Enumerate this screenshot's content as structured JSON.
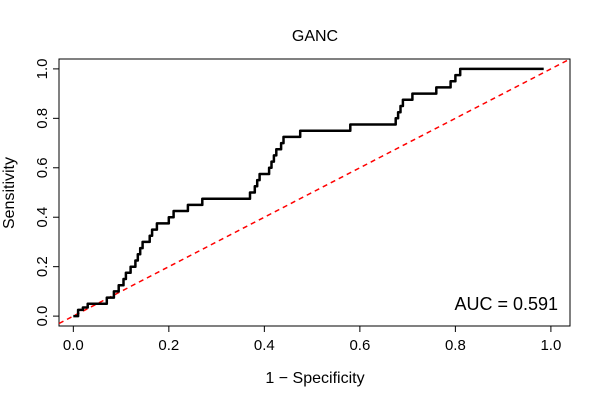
{
  "chart_data": {
    "type": "line",
    "title": "GANC",
    "xlabel": "1 − Specificity",
    "ylabel": "Sensitivity",
    "xlim": [
      -0.03,
      1.04
    ],
    "ylim": [
      -0.04,
      1.04
    ],
    "x_ticks": [
      0.0,
      0.2,
      0.4,
      0.6,
      0.8,
      1.0
    ],
    "y_ticks": [
      0.0,
      0.2,
      0.4,
      0.6,
      0.8,
      1.0
    ],
    "x_tick_labels": [
      "0.0",
      "0.2",
      "0.4",
      "0.6",
      "0.8",
      "1.0"
    ],
    "y_tick_labels": [
      "0.0",
      "0.2",
      "0.4",
      "0.6",
      "0.8",
      "1.0"
    ],
    "annotation": "AUC = 0.591",
    "grid": false,
    "series": [
      {
        "color": "#000000",
        "style": "solid",
        "x": [
          0.0,
          0.01,
          0.01,
          0.02,
          0.02,
          0.03,
          0.03,
          0.07,
          0.07,
          0.085,
          0.085,
          0.095,
          0.095,
          0.105,
          0.105,
          0.11,
          0.11,
          0.12,
          0.12,
          0.13,
          0.13,
          0.135,
          0.135,
          0.14,
          0.14,
          0.145,
          0.145,
          0.16,
          0.16,
          0.165,
          0.165,
          0.175,
          0.175,
          0.2,
          0.2,
          0.21,
          0.21,
          0.24,
          0.24,
          0.27,
          0.27,
          0.37,
          0.37,
          0.38,
          0.38,
          0.385,
          0.385,
          0.39,
          0.39,
          0.41,
          0.41,
          0.415,
          0.415,
          0.42,
          0.42,
          0.425,
          0.425,
          0.43,
          0.43,
          0.435,
          0.435,
          0.44,
          0.44,
          0.475,
          0.475,
          0.58,
          0.58,
          0.675,
          0.675,
          0.68,
          0.68,
          0.685,
          0.685,
          0.69,
          0.69,
          0.71,
          0.71,
          0.76,
          0.76,
          0.79,
          0.79,
          0.8,
          0.8,
          0.81,
          0.81,
          0.84,
          0.84,
          0.85,
          0.85,
          0.915,
          0.915,
          0.925,
          0.925,
          0.955,
          0.955,
          0.965,
          0.965,
          0.985
        ],
        "y": [
          0.0,
          0.0,
          0.025,
          0.025,
          0.035,
          0.035,
          0.05,
          0.05,
          0.075,
          0.075,
          0.1,
          0.1,
          0.125,
          0.125,
          0.15,
          0.15,
          0.175,
          0.175,
          0.2,
          0.2,
          0.225,
          0.225,
          0.25,
          0.25,
          0.275,
          0.275,
          0.3,
          0.3,
          0.325,
          0.325,
          0.35,
          0.35,
          0.375,
          0.375,
          0.4,
          0.4,
          0.425,
          0.425,
          0.45,
          0.45,
          0.475,
          0.475,
          0.5,
          0.5,
          0.525,
          0.525,
          0.55,
          0.55,
          0.575,
          0.575,
          0.6,
          0.6,
          0.625,
          0.625,
          0.65,
          0.65,
          0.675,
          0.675,
          0.675,
          0.675,
          0.7,
          0.7,
          0.725,
          0.725,
          0.75,
          0.75,
          0.775,
          0.775,
          0.8,
          0.8,
          0.825,
          0.825,
          0.85,
          0.85,
          0.875,
          0.875,
          0.9,
          0.9,
          0.925,
          0.925,
          0.95,
          0.95,
          0.975,
          0.975,
          1.0,
          1.0,
          1.0,
          1.0,
          1.0,
          1.0,
          1.0,
          1.0,
          1.0,
          1.0,
          1.0,
          1.0,
          1.0,
          1.0
        ]
      },
      {
        "color": "#ff0000",
        "style": "dashed",
        "x": [
          -0.03,
          1.04
        ],
        "y": [
          -0.03,
          1.04
        ]
      }
    ]
  }
}
